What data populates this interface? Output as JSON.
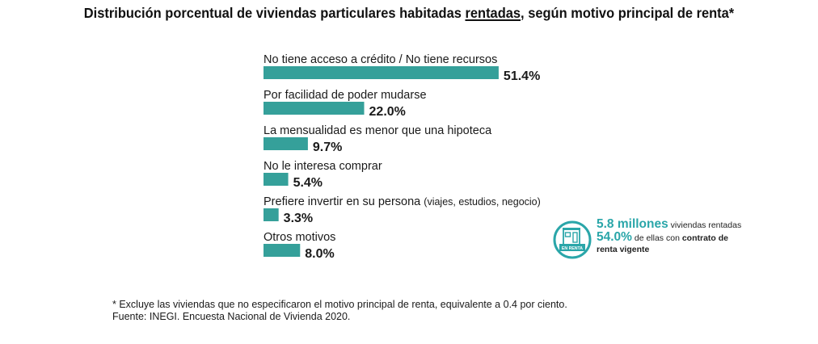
{
  "chart_data": {
    "type": "bar",
    "orientation": "horizontal",
    "title_parts": {
      "before": "Distribución porcentual de viviendas particulares habitadas ",
      "underlined": "rentadas",
      "after": ", según motivo principal de renta*"
    },
    "title": "Distribución porcentual de viviendas particulares habitadas rentadas, según motivo principal de renta*",
    "categories": [
      "No tiene acceso a crédito / No tiene recursos",
      "Por facilidad de poder mudarse",
      "La mensualidad es menor que una hipoteca",
      "No le interesa comprar",
      "Prefiere invertir en su persona (viajes, estudios, negocio)",
      "Otros motivos"
    ],
    "rows": [
      {
        "label": "No tiene acceso a crédito / No tiene recursos",
        "note": "",
        "value": 51.4,
        "value_label": "51.4%"
      },
      {
        "label": "Por facilidad de poder mudarse",
        "note": "",
        "value": 22.0,
        "value_label": "22.0%"
      },
      {
        "label": "La mensualidad es menor que una hipoteca",
        "note": "",
        "value": 9.7,
        "value_label": "9.7%"
      },
      {
        "label": "No le interesa comprar",
        "note": "",
        "value": 5.4,
        "value_label": "5.4%"
      },
      {
        "label": "Prefiere invertir en su persona",
        "note": "(viajes, estudios, negocio)",
        "value": 3.3,
        "value_label": "3.3%"
      },
      {
        "label": "Otros motivos",
        "note": "",
        "value": 8.0,
        "value_label": "8.0%"
      }
    ],
    "values": [
      51.4,
      22.0,
      9.7,
      5.4,
      3.3,
      8.0
    ],
    "xlabel": "",
    "ylabel": "",
    "xlim": [
      0,
      100
    ],
    "unit": "%",
    "grid": false,
    "bar_color": "#35a09a"
  },
  "callout": {
    "icon": "house-for-rent-icon",
    "icon_text": "EN RENTA",
    "line1_big": "5.8 millones",
    "line1_rest": " viviendas rentadas",
    "line2_big": "54.0%",
    "line2_rest": " de ellas con ",
    "line2_bold": "contrato de renta vigente",
    "accent_color": "#2aa6a9"
  },
  "footnote": {
    "note": "* Excluye las viviendas que no especificaron el motivo principal de renta, equivalente a 0.4 por ciento.",
    "source": "Fuente: INEGI. Encuesta Nacional de Vivienda 2020."
  }
}
